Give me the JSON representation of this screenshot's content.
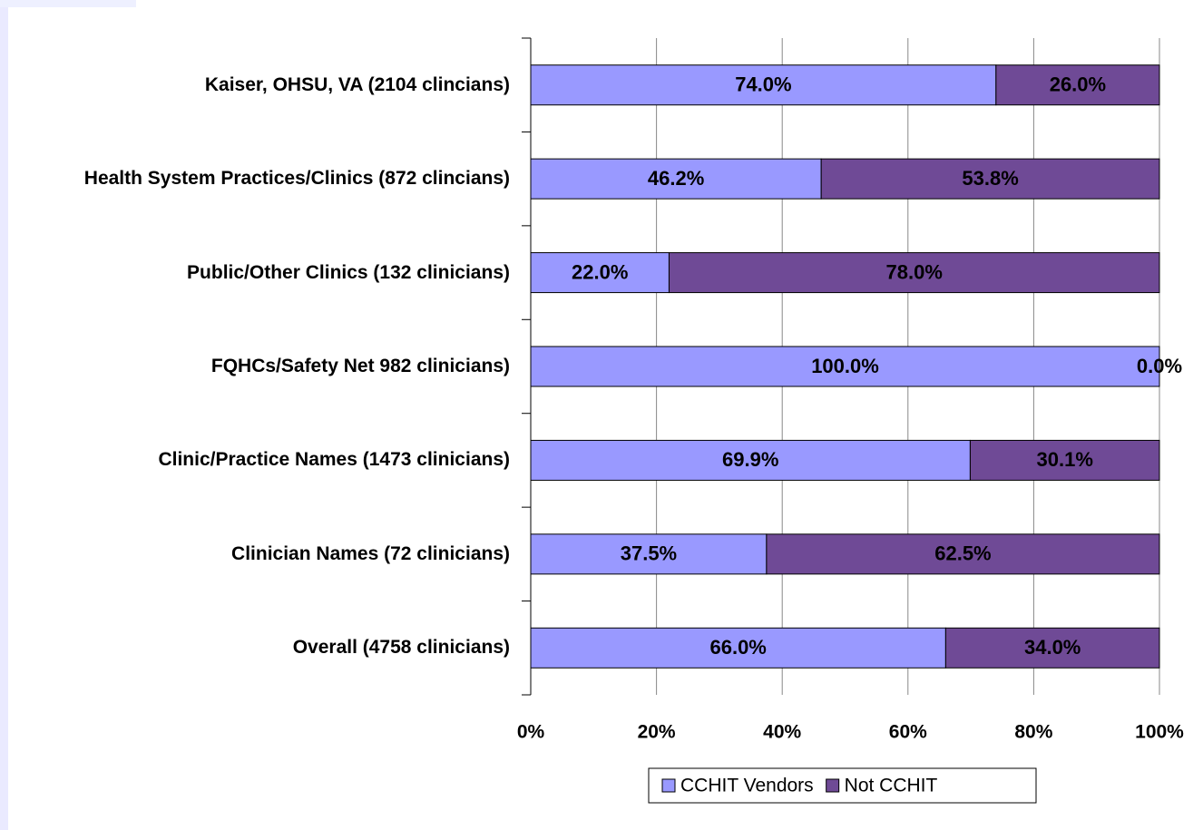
{
  "chart_data": {
    "type": "stacked-barh",
    "categories": [
      "Kaiser, OHSU, VA (2104 clincians)",
      "Health System Practices/Clinics (872 clincians)",
      "Public/Other Clinics (132 clinicians)",
      "FQHCs/Safety Net 982 clinicians)",
      "Clinic/Practice Names (1473 clinicians)",
      "Clinician Names (72 clinicians)",
      "Overall (4758 clinicians)"
    ],
    "series": [
      {
        "name": "CCHIT Vendors",
        "color": "#9999ff",
        "values": [
          74.0,
          46.2,
          22.0,
          100.0,
          69.9,
          37.5,
          66.0
        ],
        "value_labels": [
          "74.0%",
          "46.2%",
          "22.0%",
          "100.0%",
          "69.9%",
          "37.5%",
          "66.0%"
        ]
      },
      {
        "name": "Not CCHIT",
        "color": "#6f4a96",
        "values": [
          26.0,
          53.8,
          78.0,
          0.0,
          30.1,
          62.5,
          34.0
        ],
        "value_labels": [
          "26.0%",
          "53.8%",
          "78.0%",
          "0.0%",
          "30.1%",
          "62.5%",
          "34.0%"
        ]
      }
    ],
    "xlim": [
      0,
      100
    ],
    "xticks": [
      {
        "value": 0,
        "label": "0%"
      },
      {
        "value": 20,
        "label": "20%"
      },
      {
        "value": 40,
        "label": "40%"
      },
      {
        "value": 60,
        "label": "60%"
      },
      {
        "value": 80,
        "label": "80%"
      },
      {
        "value": 100,
        "label": "100%"
      }
    ],
    "grid": true,
    "legend": "bottom"
  }
}
